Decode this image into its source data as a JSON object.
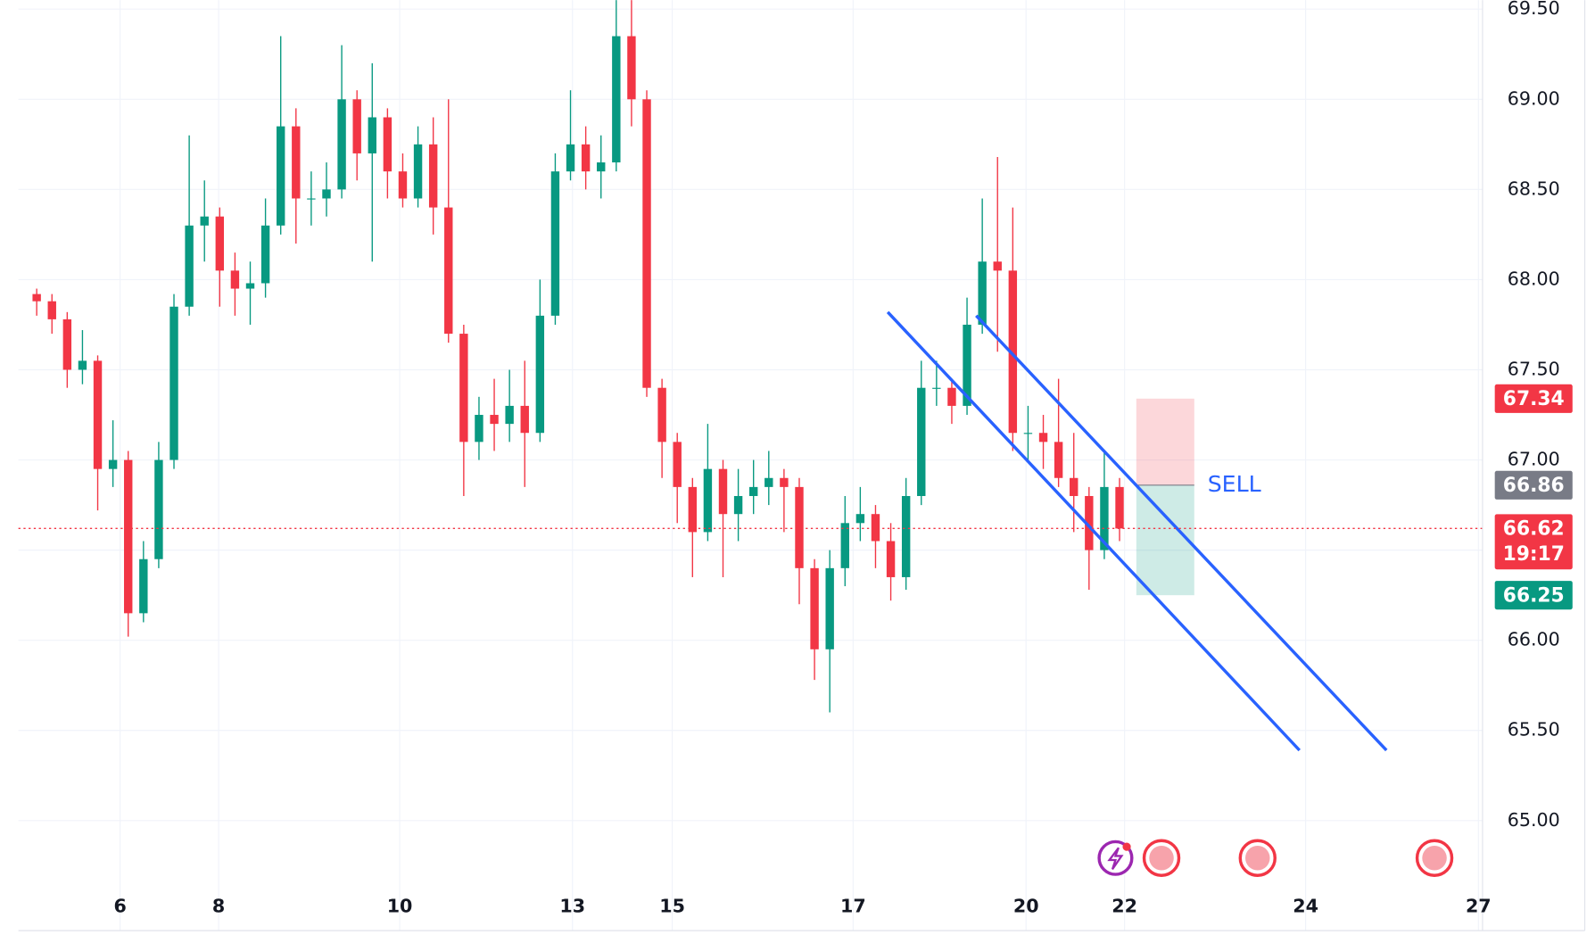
{
  "chart_data": {
    "type": "candlestick",
    "x": [
      0,
      1,
      2,
      3,
      4,
      5,
      6,
      7,
      8,
      9,
      10,
      11,
      12,
      13,
      14,
      15,
      16,
      17,
      18,
      19,
      20,
      21,
      22,
      23,
      24,
      25,
      26,
      27,
      28,
      29,
      30,
      31,
      32,
      33,
      34,
      35,
      36,
      37,
      38,
      39,
      40,
      41,
      42,
      43,
      44,
      45,
      46,
      47,
      48,
      49,
      50,
      51,
      52,
      53,
      54,
      55,
      56,
      57,
      58,
      59,
      60,
      61,
      62,
      63,
      64,
      65,
      66,
      67,
      68,
      69,
      70,
      71
    ],
    "open": [
      67.92,
      67.88,
      67.78,
      67.5,
      67.55,
      66.95,
      67.0,
      66.15,
      66.45,
      67.0,
      67.85,
      68.3,
      68.35,
      68.05,
      67.95,
      67.98,
      68.3,
      68.85,
      68.45,
      68.45,
      68.5,
      69.0,
      68.7,
      68.9,
      68.6,
      68.45,
      68.75,
      68.4,
      67.7,
      67.1,
      67.25,
      67.2,
      67.3,
      67.15,
      67.8,
      68.6,
      68.75,
      68.6,
      68.65,
      69.35,
      69.0,
      67.4,
      67.1,
      66.85,
      66.6,
      66.95,
      66.7,
      66.8,
      66.85,
      66.9,
      66.85,
      66.4,
      65.95,
      66.4,
      66.65,
      66.7,
      66.55,
      66.35,
      66.8,
      67.4,
      67.4,
      67.3,
      67.75,
      68.1,
      68.05,
      67.15,
      67.15,
      67.1,
      66.9,
      66.8,
      66.5,
      66.85
    ],
    "high": [
      67.95,
      67.92,
      67.82,
      67.72,
      67.58,
      67.22,
      67.05,
      66.55,
      67.1,
      67.92,
      68.8,
      68.55,
      68.4,
      68.15,
      68.1,
      68.45,
      69.35,
      68.95,
      68.6,
      68.65,
      69.3,
      69.05,
      69.2,
      68.95,
      68.7,
      68.85,
      68.9,
      69.0,
      67.75,
      67.35,
      67.45,
      67.5,
      67.55,
      68.0,
      68.7,
      69.05,
      68.85,
      68.8,
      69.55,
      69.55,
      69.05,
      67.45,
      67.15,
      66.9,
      67.2,
      67.0,
      66.95,
      67.0,
      67.05,
      66.95,
      66.9,
      66.45,
      66.5,
      66.8,
      66.85,
      66.75,
      66.65,
      66.9,
      67.55,
      67.55,
      67.45,
      67.9,
      68.45,
      68.68,
      68.4,
      67.3,
      67.25,
      67.45,
      67.15,
      66.85,
      67.05,
      66.9
    ],
    "low": [
      67.8,
      67.7,
      67.4,
      67.42,
      66.72,
      66.85,
      66.02,
      66.1,
      66.4,
      66.95,
      67.8,
      68.1,
      67.85,
      67.8,
      67.75,
      67.9,
      68.25,
      68.2,
      68.3,
      68.35,
      68.45,
      68.55,
      68.1,
      68.45,
      68.4,
      68.4,
      68.25,
      67.65,
      66.8,
      67.0,
      67.05,
      67.1,
      66.85,
      67.1,
      67.75,
      68.55,
      68.5,
      68.45,
      68.6,
      68.85,
      67.35,
      66.9,
      66.65,
      66.35,
      66.55,
      66.35,
      66.55,
      66.7,
      66.75,
      66.6,
      66.2,
      65.78,
      65.6,
      66.3,
      66.55,
      66.4,
      66.22,
      66.28,
      66.75,
      67.3,
      67.2,
      67.25,
      67.7,
      67.6,
      67.05,
      67.0,
      66.95,
      66.85,
      66.6,
      66.28,
      66.45,
      66.55
    ],
    "close": [
      67.88,
      67.78,
      67.5,
      67.55,
      66.95,
      67.0,
      66.15,
      66.45,
      67.0,
      67.85,
      68.3,
      68.35,
      68.05,
      67.95,
      67.98,
      68.3,
      68.85,
      68.45,
      68.45,
      68.5,
      69.0,
      68.7,
      68.9,
      68.6,
      68.45,
      68.75,
      68.4,
      67.7,
      67.1,
      67.25,
      67.2,
      67.3,
      67.15,
      67.8,
      68.6,
      68.75,
      68.6,
      68.65,
      69.35,
      69.0,
      67.4,
      67.1,
      66.85,
      66.6,
      66.95,
      66.7,
      66.8,
      66.85,
      66.9,
      66.85,
      66.4,
      65.95,
      66.4,
      66.65,
      66.7,
      66.55,
      66.35,
      66.8,
      67.4,
      67.4,
      67.3,
      67.75,
      68.1,
      68.05,
      67.15,
      67.15,
      67.1,
      66.9,
      66.8,
      66.5,
      66.85,
      66.62
    ],
    "up_color": "#089981",
    "down_color": "#f23645",
    "xlim": [
      -1.2,
      94.8
    ],
    "xticks": [
      {
        "value": 5.47,
        "label": "6"
      },
      {
        "value": 11.93,
        "label": "8"
      },
      {
        "value": 23.8,
        "label": "10"
      },
      {
        "value": 35.13,
        "label": "13"
      },
      {
        "value": 41.67,
        "label": "15"
      },
      {
        "value": 53.53,
        "label": "17"
      },
      {
        "value": 64.87,
        "label": "20"
      },
      {
        "value": 71.33,
        "label": "22"
      },
      {
        "value": 83.2,
        "label": "24"
      },
      {
        "value": 94.53,
        "label": "27"
      }
    ],
    "ylim": [
      64.39,
      69.55
    ],
    "yticks": [
      {
        "value": 65,
        "label": "65.00"
      },
      {
        "value": 65.5,
        "label": "65.50"
      },
      {
        "value": 66,
        "label": "66.00"
      },
      {
        "value": 66.5,
        "label": "66.50"
      },
      {
        "value": 67,
        "label": "67.00"
      },
      {
        "value": 67.5,
        "label": "67.50"
      },
      {
        "value": 68,
        "label": "68.00"
      },
      {
        "value": 68.5,
        "label": "68.50"
      },
      {
        "value": 69,
        "label": "69.00"
      },
      {
        "value": 69.5,
        "label": "69.50"
      }
    ],
    "grid": true,
    "current_price": {
      "value": 66.62,
      "countdown": "19:17",
      "color": "#f23645"
    },
    "trend_lines": [
      {
        "x": [
          55.8,
          82.8
        ],
        "y": [
          67.82,
          65.39
        ],
        "color": "#2962ff"
      },
      {
        "x": [
          61.6,
          88.5
        ],
        "y": [
          67.8,
          65.39
        ],
        "color": "#2962ff"
      }
    ],
    "position": {
      "label": "SELL",
      "x": [
        72.1,
        75.9
      ],
      "entry": 66.86,
      "stop": 67.34,
      "target": 66.25,
      "entry_color": "#787b86",
      "stop_color": "#f23645",
      "target_color": "#089981",
      "label_color": "#2962ff"
    }
  }
}
